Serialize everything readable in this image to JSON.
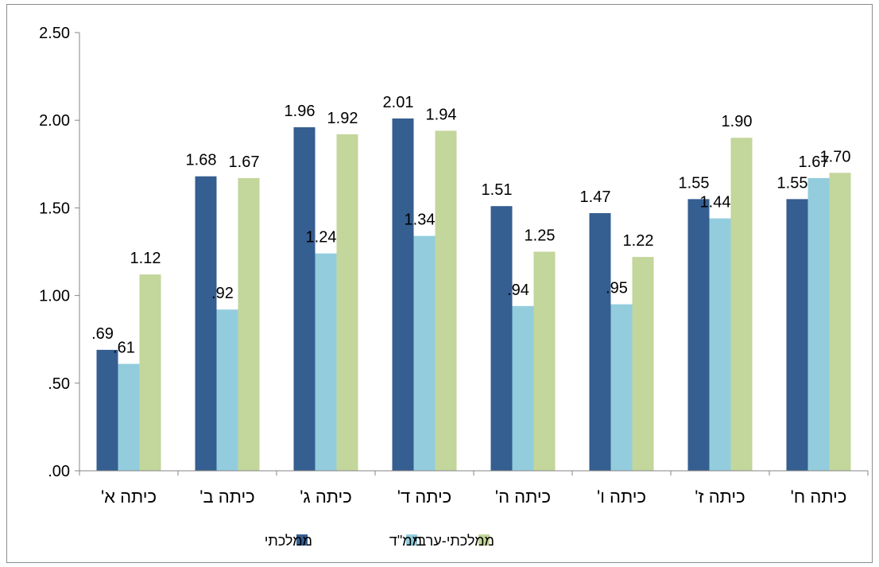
{
  "chart_data": {
    "type": "bar",
    "categories": [
      "כיתה א'",
      "כיתה ב'",
      "כיתה ג'",
      "כיתה ד'",
      "כיתה ה'",
      "כיתה ו'",
      "כיתה ז'",
      "כיתה ח'"
    ],
    "series": [
      {
        "name": "ממלכתי",
        "color": "#355E91",
        "values": [
          0.69,
          1.68,
          1.96,
          2.01,
          1.51,
          1.47,
          1.55,
          1.55
        ],
        "labels": [
          ".69",
          "1.68",
          "1.96",
          "2.01",
          "1.51",
          "1.47",
          "1.55",
          "1.55"
        ]
      },
      {
        "name": "ממ\"ד",
        "color": "#93CDDD",
        "values": [
          0.61,
          0.92,
          1.24,
          1.34,
          0.94,
          0.95,
          1.44,
          1.67
        ],
        "labels": [
          ".61",
          ".92",
          "1.24",
          "1.34",
          ".94",
          ".95",
          "1.44",
          "1.67"
        ]
      },
      {
        "name": "ממלכתי-ערבי",
        "color": "#C3D69B",
        "values": [
          1.12,
          1.67,
          1.92,
          1.94,
          1.25,
          1.22,
          1.9,
          1.7
        ],
        "labels": [
          "1.12",
          "1.67",
          "1.92",
          "1.94",
          "1.25",
          "1.22",
          "1.90",
          "1.70"
        ]
      }
    ],
    "yticks": [
      ".00",
      ".50",
      "1.00",
      "1.50",
      "2.00",
      "2.50"
    ],
    "ylim": [
      0,
      2.5
    ],
    "title": "",
    "xlabel": "",
    "ylabel": "",
    "grid": false,
    "legend": "bottom"
  }
}
